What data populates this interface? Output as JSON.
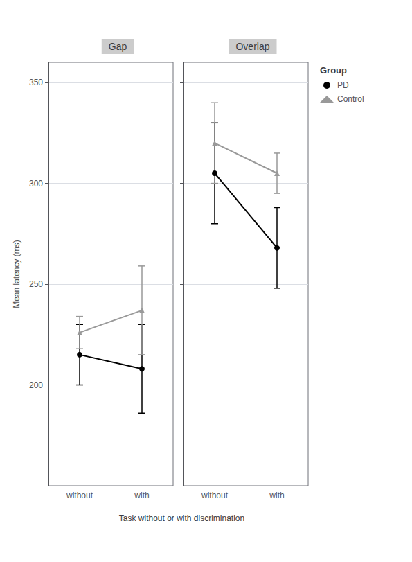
{
  "chart_data": [
    {
      "type": "line",
      "title": "Gap",
      "categories": [
        "without",
        "with"
      ],
      "xlabel": "Task without or with discrimination",
      "ylabel": "Mean latency (ms)",
      "ylim": [
        150,
        360
      ],
      "yticks": [
        200,
        250,
        300,
        350
      ],
      "grid": true,
      "series": [
        {
          "name": "PD",
          "color": "black",
          "marker": "circle",
          "values": [
            215,
            208
          ],
          "errors": [
            15,
            22
          ]
        },
        {
          "name": "Control",
          "color": "#999999",
          "marker": "triangle",
          "values": [
            226,
            237
          ],
          "errors": [
            8,
            22
          ]
        }
      ]
    },
    {
      "type": "line",
      "title": "Overlap",
      "categories": [
        "without",
        "with"
      ],
      "ylim": [
        150,
        360
      ],
      "yticks": [
        200,
        250,
        300,
        350
      ],
      "grid": true,
      "tick_labels": "x",
      "legend": "right",
      "legend_title": "Group",
      "series": [
        {
          "name": "PD",
          "color": "black",
          "marker": "circle",
          "values": [
            305,
            268
          ],
          "errors": [
            25,
            20
          ]
        },
        {
          "name": "Control",
          "color": "#999999",
          "marker": "triangle",
          "values": [
            320,
            305
          ],
          "errors": [
            20,
            10
          ]
        }
      ]
    }
  ]
}
